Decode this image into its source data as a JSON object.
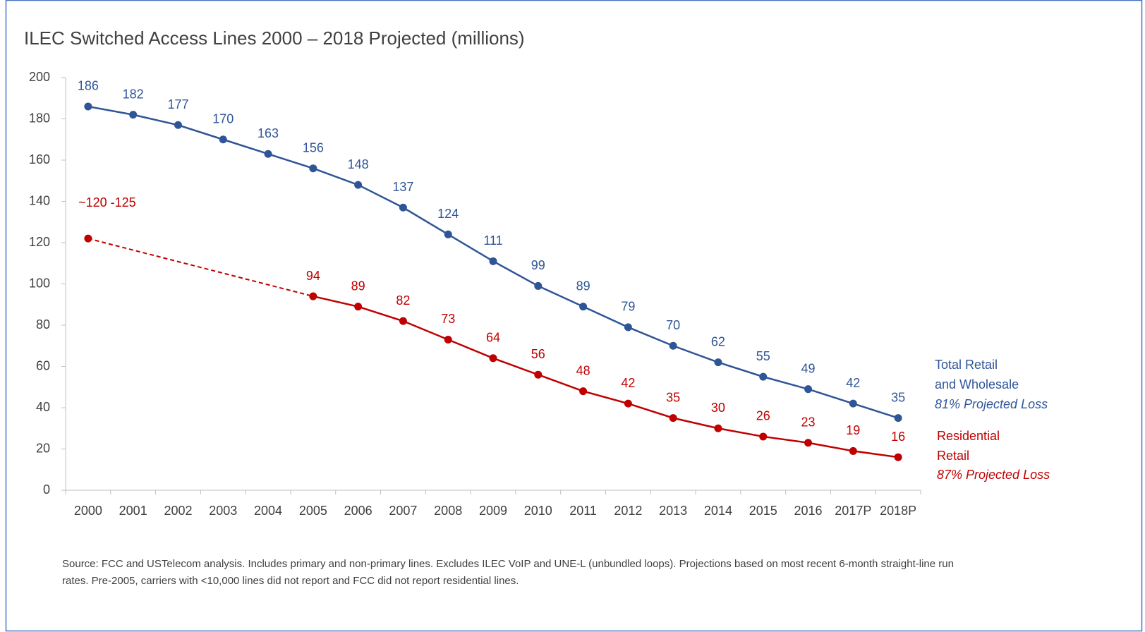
{
  "chart_data": {
    "type": "line",
    "title": "ILEC Switched Access Lines 2000 – 2018 Projected (millions)",
    "categories": [
      "2000",
      "2001",
      "2002",
      "2003",
      "2004",
      "2005",
      "2006",
      "2007",
      "2008",
      "2009",
      "2010",
      "2011",
      "2012",
      "2013",
      "2014",
      "2015",
      "2016",
      "2017P",
      "2018P"
    ],
    "series": [
      {
        "name": "Total Retail and Wholesale",
        "color": "#2f5597",
        "values": [
          186,
          182,
          177,
          170,
          163,
          156,
          148,
          137,
          124,
          111,
          99,
          89,
          79,
          70,
          62,
          55,
          49,
          42,
          35
        ]
      },
      {
        "name": "Residential Retail",
        "color": "#c00000",
        "connect_gaps": "dashed",
        "values": [
          122,
          null,
          null,
          null,
          null,
          94,
          89,
          82,
          73,
          64,
          56,
          48,
          42,
          35,
          30,
          26,
          23,
          19,
          16
        ],
        "value_labels": [
          "~120 -125",
          null,
          null,
          null,
          null,
          null,
          null,
          null,
          null,
          null,
          null,
          null,
          null,
          null,
          null,
          null,
          null,
          null,
          null
        ]
      }
    ],
    "annotations": [
      "81% Projected Loss",
      "87% Projected Loss"
    ],
    "ylim": [
      0,
      200
    ],
    "yticks": [
      0,
      20,
      40,
      60,
      80,
      100,
      120,
      140,
      160,
      180,
      200
    ],
    "source": "Source:  FCC and USTelecom analysis.  Includes primary and non-primary lines. Excludes ILEC VoIP and UNE-L (unbundled loops). Projections based on most recent 6-month straight-line run rates. Pre-2005, carriers with <10,000 lines did not report and FCC did not report residential lines."
  }
}
